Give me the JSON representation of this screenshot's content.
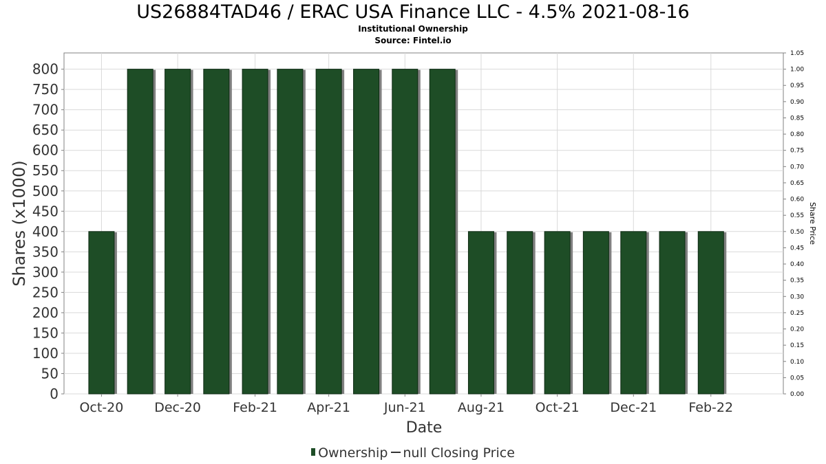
{
  "title": "US26884TAD46 / ERAC USA Finance LLC - 4.5% 2021-08-16",
  "subtitle1": "Institutional Ownership",
  "subtitle2": "Source: Fintel.io",
  "legend": {
    "ownership": "Ownership",
    "price": "null Closing Price"
  },
  "colors": {
    "bar": "#1e4d26",
    "bar_shadow": "#808080",
    "grid": "#d9d9d9"
  },
  "chart_data": {
    "type": "bar",
    "xlabel": "Date",
    "ylabel": "Shares (x1000)",
    "y2label": "Share Price",
    "ylim": [
      0,
      840
    ],
    "y2lim": [
      0,
      1.05
    ],
    "yticks": [
      0,
      50,
      100,
      150,
      200,
      250,
      300,
      350,
      400,
      450,
      500,
      550,
      600,
      650,
      700,
      750,
      800
    ],
    "y2ticks": [
      "0.00",
      "0.05",
      "0.10",
      "0.15",
      "0.20",
      "0.25",
      "0.30",
      "0.35",
      "0.40",
      "0.45",
      "0.50",
      "0.55",
      "0.60",
      "0.65",
      "0.70",
      "0.75",
      "0.80",
      "0.85",
      "0.90",
      "0.95",
      "1.00",
      "1.05"
    ],
    "xticks": [
      "Oct-20",
      "Dec-20",
      "Feb-21",
      "Apr-21",
      "Jun-21",
      "Aug-21",
      "Oct-21",
      "Dec-21",
      "Feb-22"
    ],
    "xlim": [
      "2020-09-01",
      "2022-03-31"
    ],
    "grid": true,
    "legend_position": "bottom",
    "series": [
      {
        "name": "Ownership",
        "x": [
          "2020-10-01",
          "2020-11-01",
          "2020-12-01",
          "2021-01-01",
          "2021-02-01",
          "2021-03-01",
          "2021-04-01",
          "2021-05-01",
          "2021-06-01",
          "2021-07-01",
          "2021-08-01",
          "2021-09-01",
          "2021-10-01",
          "2021-11-01",
          "2021-12-01",
          "2022-01-01",
          "2022-02-01"
        ],
        "values": [
          400,
          800,
          800,
          800,
          800,
          800,
          800,
          800,
          800,
          800,
          400,
          400,
          400,
          400,
          400,
          400,
          400
        ]
      }
    ]
  }
}
